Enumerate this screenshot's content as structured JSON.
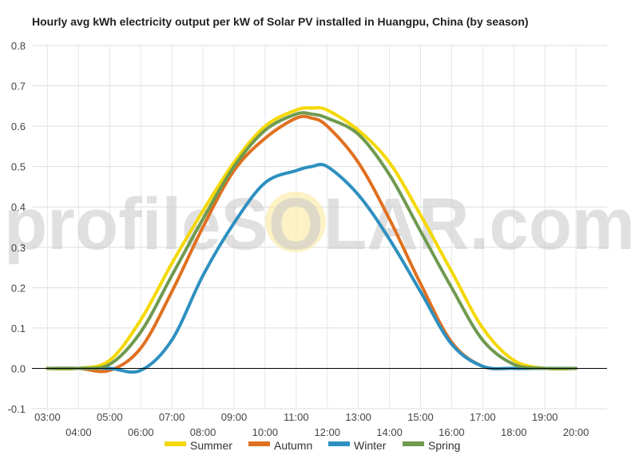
{
  "chart_data": {
    "type": "line",
    "title": "Hourly avg kWh electricity output per kW of Solar PV installed in Huangpu, China (by season)",
    "xlabel": "",
    "ylabel": "",
    "ylim": [
      -0.1,
      0.8
    ],
    "yticks": [
      "-0.1",
      "0.0",
      "0.1",
      "0.2",
      "0.3",
      "0.4",
      "0.5",
      "0.6",
      "0.7",
      "0.8"
    ],
    "xlim": [
      2.5,
      21
    ],
    "xticks": [
      {
        "value": 3,
        "label": "03:00"
      },
      {
        "value": 4,
        "label": "04:00"
      },
      {
        "value": 5,
        "label": "05:00"
      },
      {
        "value": 6,
        "label": "06:00"
      },
      {
        "value": 7,
        "label": "07:00"
      },
      {
        "value": 8,
        "label": "08:00"
      },
      {
        "value": 9,
        "label": "09:00"
      },
      {
        "value": 10,
        "label": "10:00"
      },
      {
        "value": 11,
        "label": "11:00"
      },
      {
        "value": 12,
        "label": "12:00"
      },
      {
        "value": 13,
        "label": "13:00"
      },
      {
        "value": 14,
        "label": "14:00"
      },
      {
        "value": 15,
        "label": "15:00"
      },
      {
        "value": 16,
        "label": "16:00"
      },
      {
        "value": 17,
        "label": "17:00"
      },
      {
        "value": 18,
        "label": "18:00"
      },
      {
        "value": 19,
        "label": "19:00"
      },
      {
        "value": 20,
        "label": "20:00"
      }
    ],
    "grid": true,
    "legend_position": "bottom",
    "watermark": "profileSOLAR.com",
    "x": [
      3,
      4,
      5,
      6,
      7,
      8,
      9,
      10,
      11,
      11.5,
      12,
      13,
      14,
      15,
      16,
      17,
      18,
      19,
      20
    ],
    "series": [
      {
        "name": "Summer",
        "color": "#f5d800",
        "values": [
          0,
          0,
          0.02,
          0.12,
          0.26,
          0.39,
          0.51,
          0.6,
          0.64,
          0.645,
          0.64,
          0.59,
          0.51,
          0.38,
          0.24,
          0.1,
          0.02,
          0,
          0
        ]
      },
      {
        "name": "Autumn",
        "color": "#e07020",
        "values": [
          0,
          0,
          -0.005,
          0.05,
          0.19,
          0.35,
          0.49,
          0.57,
          0.62,
          0.62,
          0.6,
          0.51,
          0.37,
          0.21,
          0.065,
          0.005,
          0,
          0,
          0
        ]
      },
      {
        "name": "Winter",
        "color": "#2d90c0",
        "values": [
          0,
          0,
          0,
          -0.005,
          0.07,
          0.23,
          0.36,
          0.46,
          0.49,
          0.5,
          0.5,
          0.43,
          0.32,
          0.19,
          0.06,
          0.005,
          0,
          0,
          0
        ]
      },
      {
        "name": "Spring",
        "color": "#6f9a4f",
        "values": [
          0,
          0,
          0.01,
          0.09,
          0.23,
          0.37,
          0.5,
          0.59,
          0.63,
          0.63,
          0.62,
          0.58,
          0.48,
          0.34,
          0.2,
          0.07,
          0.01,
          0,
          0
        ]
      }
    ]
  }
}
